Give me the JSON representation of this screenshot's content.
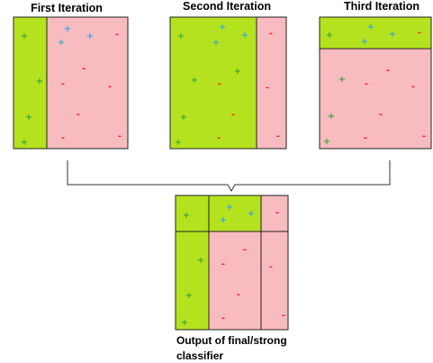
{
  "titles": {
    "first": "First Iteration",
    "second": "Second Iteration",
    "third": "Third Iteration",
    "output_line1": "Output of final/strong",
    "output_line2": "classifier"
  },
  "symbols": {
    "plus": "+",
    "minus": "-"
  },
  "colors": {
    "positive_region": "#b5e21e",
    "negative_region": "#f8bbbf",
    "plus_green": "#3aa83a",
    "plus_blue": "#39a9d6",
    "minus_red": "#ff2020",
    "border": "#222222"
  }
}
